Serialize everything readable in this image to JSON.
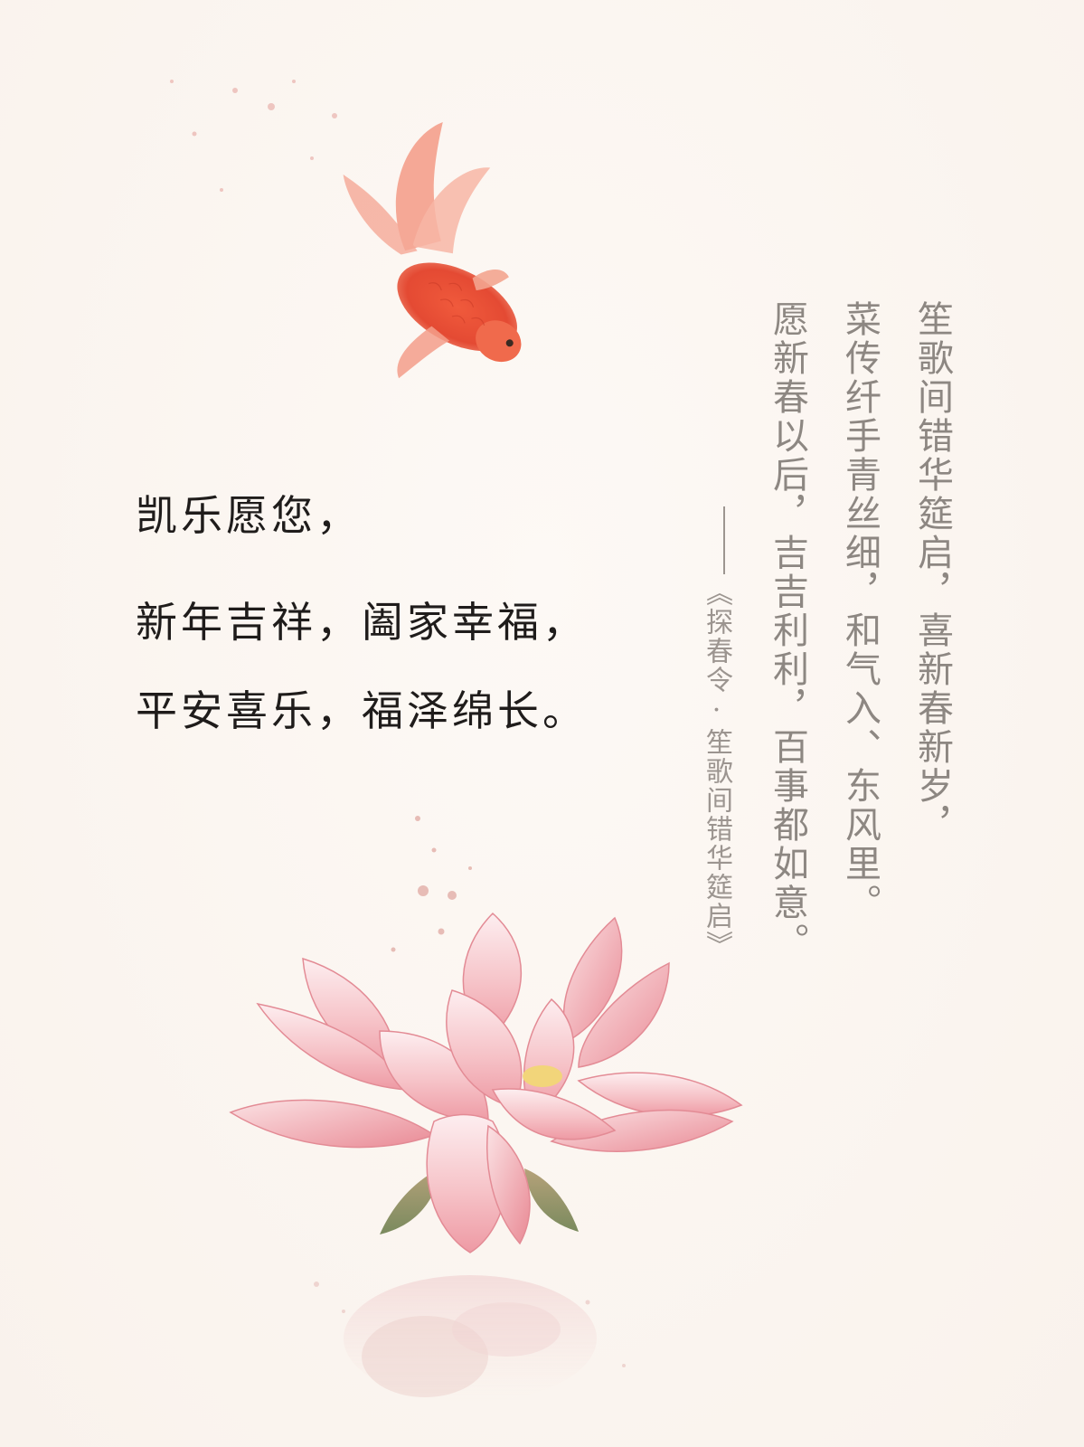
{
  "greeting": {
    "line1": "凯乐愿您，",
    "line2": "新年吉祥，阖家幸福，",
    "line3": "平安喜乐，福泽绵长。"
  },
  "poem": {
    "col1": "笙歌间错华筵启，喜新春新岁，",
    "col2": "菜传纤手青丝细，和气入、东风里。",
    "col3": "愿新春以后，吉吉利利，百事都如意。"
  },
  "attribution": "《探春令·笙歌间错华筵启》",
  "colors": {
    "background": "#fbf6f1",
    "goldfish": "#e8503a",
    "lotus_petal": "#f4b8bf",
    "lotus_edge": "#e07a86",
    "text_main": "#1f1c1b",
    "text_poem": "#8d8782"
  },
  "illustrations": {
    "top": "goldfish-illustration",
    "bottom": "lotus-flower-illustration"
  }
}
